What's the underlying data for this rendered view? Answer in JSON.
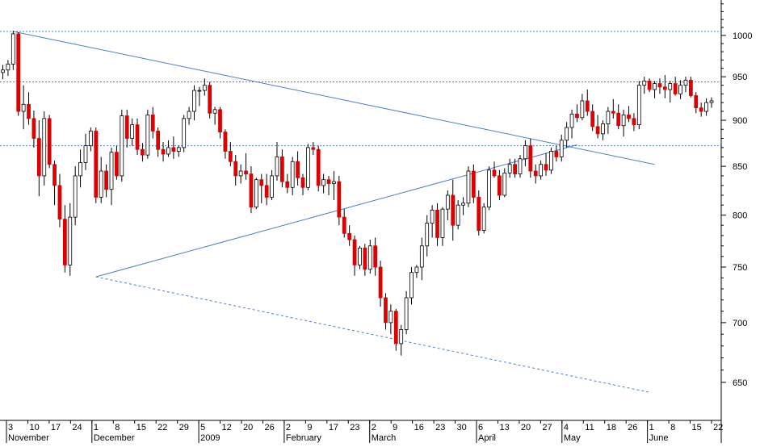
{
  "chart_data": {
    "type": "candlestick",
    "y_axis": {
      "position": "right",
      "range": [
        620,
        1045
      ],
      "ticks": [
        1000,
        950,
        900,
        850,
        800,
        750,
        700,
        650
      ],
      "scale": "log"
    },
    "x_axis": {
      "day_labels": [
        "3",
        "10",
        "17",
        "24",
        "1",
        "8",
        "15",
        "22",
        "29",
        "5",
        "12",
        "20",
        "26",
        "2",
        "9",
        "17",
        "23",
        "2",
        "9",
        "16",
        "23",
        "30",
        "6",
        "13",
        "20",
        "27",
        "4",
        "11",
        "18",
        "26",
        "1",
        "8",
        "15",
        "22"
      ],
      "month_labels": [
        "November",
        "December",
        "2009",
        "February",
        "March",
        "April",
        "May",
        "June"
      ]
    },
    "colors": {
      "up_candle": "#ffffff",
      "down_candle": "#dd0000",
      "wick": "#000000",
      "trendline": "#4a7fd0",
      "reference_line": "#4a7fd0"
    },
    "horizontal_lines": [
      1005,
      944,
      872
    ],
    "trendlines": [
      {
        "style": "solid",
        "from": {
          "candle": 2,
          "price": 1005
        },
        "to": {
          "candle": 126,
          "price": 852
        }
      },
      {
        "style": "solid",
        "from": {
          "candle": 18,
          "price": 741
        },
        "to": {
          "candle": 111,
          "price": 873
        }
      },
      {
        "style": "dashed",
        "from": {
          "candle": 18,
          "price": 741
        },
        "to": {
          "candle": 125,
          "price": 642
        }
      }
    ],
    "candles": [
      [
        955,
        964,
        947,
        958
      ],
      [
        958,
        970,
        951,
        965
      ],
      [
        965,
        1006,
        958,
        1002
      ],
      [
        1002,
        1004,
        905,
        910
      ],
      [
        910,
        940,
        890,
        918
      ],
      [
        918,
        932,
        895,
        902
      ],
      [
        902,
        911,
        870,
        880
      ],
      [
        880,
        900,
        819,
        840
      ],
      [
        840,
        910,
        830,
        902
      ],
      [
        902,
        906,
        848,
        852
      ],
      [
        852,
        856,
        810,
        830
      ],
      [
        830,
        842,
        788,
        796
      ],
      [
        796,
        810,
        745,
        752
      ],
      [
        752,
        812,
        742,
        798
      ],
      [
        798,
        850,
        790,
        840
      ],
      [
        840,
        868,
        828,
        854
      ],
      [
        854,
        885,
        846,
        872
      ],
      [
        872,
        892,
        866,
        888
      ],
      [
        888,
        892,
        812,
        818
      ],
      [
        818,
        860,
        812,
        845
      ],
      [
        845,
        852,
        818,
        826
      ],
      [
        826,
        870,
        810,
        865
      ],
      [
        865,
        872,
        836,
        840
      ],
      [
        840,
        912,
        834,
        905
      ],
      [
        905,
        912,
        870,
        880
      ],
      [
        880,
        902,
        872,
        895
      ],
      [
        895,
        902,
        862,
        868
      ],
      [
        868,
        875,
        855,
        862
      ],
      [
        862,
        912,
        858,
        906
      ],
      [
        906,
        915,
        880,
        888
      ],
      [
        888,
        892,
        860,
        868
      ],
      [
        868,
        876,
        855,
        863
      ],
      [
        863,
        878,
        860,
        870
      ],
      [
        870,
        882,
        858,
        866
      ],
      [
        866,
        872,
        860,
        870
      ],
      [
        870,
        906,
        865,
        902
      ],
      [
        902,
        915,
        895,
        910
      ],
      [
        910,
        940,
        900,
        934
      ],
      [
        934,
        938,
        916,
        934
      ],
      [
        934,
        948,
        928,
        940
      ],
      [
        940,
        944,
        902,
        908
      ],
      [
        908,
        915,
        895,
        912
      ],
      [
        912,
        915,
        880,
        887
      ],
      [
        887,
        890,
        858,
        866
      ],
      [
        866,
        876,
        850,
        855
      ],
      [
        855,
        862,
        830,
        840
      ],
      [
        840,
        852,
        832,
        845
      ],
      [
        845,
        864,
        836,
        842
      ],
      [
        842,
        850,
        802,
        808
      ],
      [
        808,
        838,
        806,
        836
      ],
      [
        836,
        842,
        812,
        830
      ],
      [
        830,
        842,
        810,
        818
      ],
      [
        818,
        846,
        815,
        840
      ],
      [
        840,
        876,
        835,
        860
      ],
      [
        860,
        868,
        828,
        834
      ],
      [
        834,
        842,
        822,
        828
      ],
      [
        828,
        860,
        820,
        855
      ],
      [
        855,
        866,
        830,
        838
      ],
      [
        838,
        842,
        820,
        828
      ],
      [
        828,
        874,
        825,
        870
      ],
      [
        870,
        876,
        862,
        868
      ],
      [
        868,
        872,
        824,
        830
      ],
      [
        830,
        842,
        822,
        836
      ],
      [
        836,
        840,
        820,
        832
      ],
      [
        832,
        845,
        815,
        834
      ],
      [
        834,
        840,
        790,
        798
      ],
      [
        798,
        806,
        778,
        782
      ],
      [
        782,
        790,
        770,
        776
      ],
      [
        776,
        780,
        742,
        752
      ],
      [
        752,
        770,
        748,
        768
      ],
      [
        768,
        772,
        742,
        748
      ],
      [
        748,
        776,
        744,
        770
      ],
      [
        770,
        778,
        742,
        750
      ],
      [
        750,
        756,
        714,
        722
      ],
      [
        722,
        726,
        694,
        700
      ],
      [
        700,
        716,
        690,
        710
      ],
      [
        710,
        712,
        676,
        682
      ],
      [
        682,
        698,
        672,
        694
      ],
      [
        694,
        728,
        690,
        722
      ],
      [
        722,
        750,
        716,
        745
      ],
      [
        745,
        752,
        740,
        750
      ],
      [
        750,
        778,
        738,
        770
      ],
      [
        770,
        800,
        760,
        792
      ],
      [
        792,
        810,
        778,
        805
      ],
      [
        805,
        812,
        770,
        778
      ],
      [
        778,
        808,
        770,
        806
      ],
      [
        806,
        825,
        795,
        820
      ],
      [
        820,
        836,
        775,
        790
      ],
      [
        790,
        815,
        786,
        810
      ],
      [
        810,
        818,
        800,
        812
      ],
      [
        812,
        850,
        808,
        845
      ],
      [
        845,
        852,
        812,
        818
      ],
      [
        818,
        825,
        780,
        785
      ],
      [
        785,
        812,
        782,
        808
      ],
      [
        808,
        850,
        805,
        846
      ],
      [
        846,
        855,
        838,
        840
      ],
      [
        840,
        846,
        815,
        820
      ],
      [
        820,
        848,
        818,
        843
      ],
      [
        843,
        858,
        838,
        852
      ],
      [
        852,
        858,
        838,
        842
      ],
      [
        842,
        862,
        838,
        858
      ],
      [
        858,
        878,
        850,
        872
      ],
      [
        872,
        880,
        838,
        845
      ],
      [
        845,
        852,
        832,
        840
      ],
      [
        840,
        856,
        836,
        852
      ],
      [
        852,
        864,
        840,
        846
      ],
      [
        846,
        870,
        842,
        866
      ],
      [
        866,
        872,
        855,
        860
      ],
      [
        860,
        884,
        855,
        878
      ],
      [
        878,
        898,
        870,
        892
      ],
      [
        892,
        912,
        880,
        907
      ],
      [
        907,
        918,
        898,
        903
      ],
      [
        903,
        930,
        900,
        922
      ],
      [
        922,
        935,
        905,
        910
      ],
      [
        910,
        918,
        888,
        893
      ],
      [
        893,
        906,
        880,
        885
      ],
      [
        885,
        900,
        878,
        896
      ],
      [
        896,
        915,
        885,
        910
      ],
      [
        910,
        924,
        902,
        908
      ],
      [
        908,
        918,
        890,
        894
      ],
      [
        894,
        912,
        882,
        906
      ],
      [
        906,
        916,
        898,
        902
      ],
      [
        902,
        908,
        888,
        895
      ],
      [
        895,
        945,
        890,
        940
      ],
      [
        940,
        950,
        930,
        945
      ],
      [
        945,
        948,
        932,
        935
      ],
      [
        935,
        945,
        925,
        942
      ],
      [
        942,
        948,
        930,
        938
      ],
      [
        938,
        952,
        925,
        935
      ],
      [
        935,
        945,
        920,
        942
      ],
      [
        942,
        950,
        928,
        930
      ],
      [
        930,
        946,
        924,
        940
      ],
      [
        940,
        950,
        932,
        946
      ],
      [
        946,
        950,
        926,
        928
      ],
      [
        928,
        932,
        908,
        914
      ],
      [
        914,
        920,
        904,
        910
      ],
      [
        910,
        925,
        905,
        920
      ],
      [
        920,
        926,
        914,
        922
      ]
    ]
  }
}
